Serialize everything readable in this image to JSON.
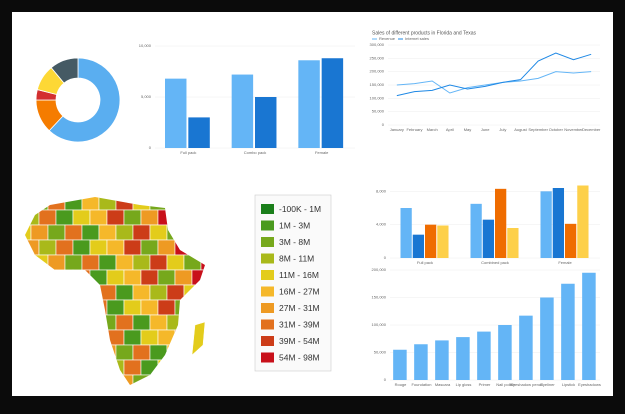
{
  "chart_data": [
    {
      "type": "pie",
      "values": [
        62,
        13,
        4,
        10,
        11
      ],
      "colors": [
        "#5aaef0",
        "#f57c00",
        "#d32f2f",
        "#fdd835",
        "#455a64"
      ]
    },
    {
      "type": "bar",
      "categories": [
        "Full pack",
        "Combo pack",
        "Female"
      ],
      "series": [
        {
          "color": "#64b5f6",
          "values": [
            6800,
            7200,
            8600
          ]
        },
        {
          "color": "#1976d2",
          "values": [
            3000,
            5000,
            8800
          ]
        }
      ],
      "ylim": [
        0,
        10000
      ],
      "yticks": [
        0,
        {
          "value": 5000,
          "label": "5,000"
        },
        {
          "value": 10000,
          "label": "10,000"
        }
      ]
    },
    {
      "type": "line",
      "title": "Sales of different products in Florida and Texas",
      "categories": [
        "January",
        "February",
        "March",
        "April",
        "May",
        "June",
        "July",
        "August",
        "September",
        "October",
        "November",
        "December"
      ],
      "series": [
        {
          "name": "Revenue",
          "color": "#64b5f6",
          "values": [
            150000,
            155000,
            165000,
            120000,
            140000,
            150000,
            160000,
            165000,
            175000,
            200000,
            195000,
            200000
          ]
        },
        {
          "name": "Internet sales",
          "color": "#1e88e5",
          "values": [
            110000,
            125000,
            130000,
            150000,
            135000,
            145000,
            160000,
            170000,
            240000,
            270000,
            245000,
            265000
          ]
        }
      ],
      "ylim": [
        0,
        300000
      ],
      "yticks": [
        0,
        {
          "value": 50000,
          "label": "50,000"
        },
        {
          "value": 100000,
          "label": "100,000"
        },
        {
          "value": 150000,
          "label": "150,000"
        },
        {
          "value": 200000,
          "label": "200,000"
        },
        {
          "value": 250000,
          "label": "250,000"
        },
        {
          "value": 300000,
          "label": "300,000"
        }
      ]
    },
    {
      "type": "bar",
      "categories": [
        "Full pack",
        "Combined pack",
        "Female"
      ],
      "series": [
        {
          "color": "#64b5f6",
          "values": [
            6000,
            6500,
            8000
          ]
        },
        {
          "color": "#1976d2",
          "values": [
            2800,
            4600,
            8400
          ]
        },
        {
          "color": "#ef6c00",
          "values": [
            4000,
            8300,
            4100
          ]
        },
        {
          "color": "#fdd04a",
          "values": [
            3900,
            3600,
            8700
          ]
        }
      ],
      "ylim": [
        0,
        9000
      ],
      "yticks": [
        0,
        {
          "value": 4000,
          "label": "4,000"
        },
        {
          "value": 8000,
          "label": "8,000"
        }
      ]
    },
    {
      "type": "bar",
      "categories": [
        "Rouge",
        "Foundation",
        "Mascara",
        "Lip gloss",
        "Primer",
        "Nail polish",
        "Eyeshadow pencil",
        "Eyeliner",
        "Lipstick",
        "Eyeshadows"
      ],
      "color": "#64b5f6",
      "values": [
        55000,
        65000,
        72000,
        78000,
        88000,
        100000,
        117000,
        150000,
        175000,
        195000
      ],
      "ylim": [
        0,
        200000
      ],
      "yticks": [
        0,
        {
          "value": 50000,
          "label": "50,000"
        },
        {
          "value": 100000,
          "label": "100,000"
        },
        {
          "value": 150000,
          "label": "150,000"
        },
        {
          "value": 200000,
          "label": "200,000"
        }
      ]
    }
  ],
  "map_legend": [
    {
      "label": "-100K - 1M",
      "color": "#1b7f1b"
    },
    {
      "label": "1M - 3M",
      "color": "#4a9a1e"
    },
    {
      "label": "3M - 8M",
      "color": "#76a81c"
    },
    {
      "label": "8M - 11M",
      "color": "#a9b91a"
    },
    {
      "label": "11M - 16M",
      "color": "#e3cc1b"
    },
    {
      "label": "16M - 27M",
      "color": "#f5b82a"
    },
    {
      "label": "27M - 31M",
      "color": "#ee9a23"
    },
    {
      "label": "31M - 39M",
      "color": "#e2711e"
    },
    {
      "label": "39M - 54M",
      "color": "#cc3c18"
    },
    {
      "label": "54M - 98M",
      "color": "#c8101a"
    }
  ]
}
